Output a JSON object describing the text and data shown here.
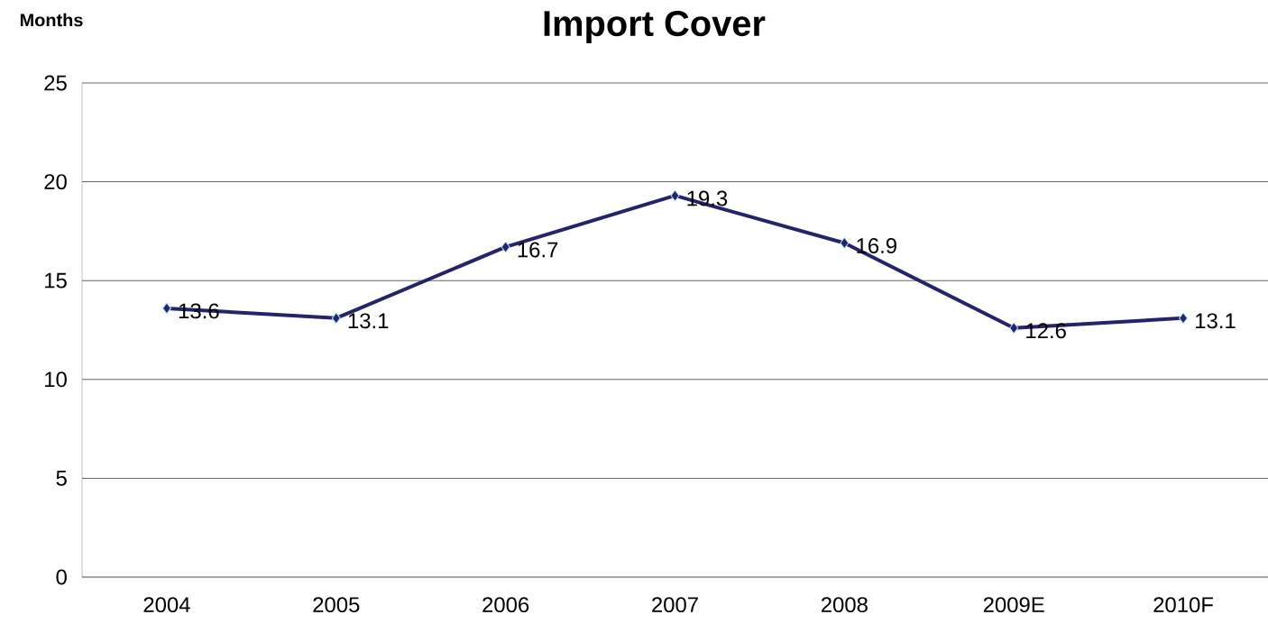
{
  "chart_data": {
    "type": "line",
    "title": "Import Cover",
    "ylabel": "Months",
    "categories": [
      "2004",
      "2005",
      "2006",
      "2007",
      "2008",
      "2009E",
      "2010F"
    ],
    "series": [
      {
        "color": "#25236a",
        "values": [
          13.6,
          13.1,
          16.7,
          19.3,
          16.9,
          12.6,
          13.1
        ],
        "value_labels": [
          "13.6",
          "13.1",
          "16.7",
          "19.3",
          "16.9",
          "12.6",
          "13.1"
        ]
      }
    ],
    "ylim": [
      0,
      25
    ],
    "yticks": [
      0,
      5,
      10,
      15,
      20,
      25
    ],
    "grid": "y",
    "marker": "diamond",
    "line_style": "solid"
  }
}
